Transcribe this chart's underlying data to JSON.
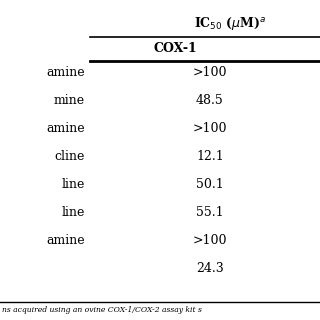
{
  "header_ic50": "IC$_{50}$ ($\\mu$M)$^a$",
  "subheader_cox1": "COX-1",
  "rows": [
    {
      "label": "amine",
      "cox1": ">100"
    },
    {
      "label": "mine",
      "cox1": "48.5"
    },
    {
      "label": "amine",
      "cox1": ">100"
    },
    {
      "label": "cline",
      "cox1": "12.1"
    },
    {
      "label": "line",
      "cox1": "50.1"
    },
    {
      "label": "line",
      "cox1": "55.1"
    },
    {
      "label": "amine",
      "cox1": ">100"
    },
    {
      "label": "",
      "cox1": "24.3"
    }
  ],
  "footer": "ns acquired using an ovine COX-1/COX-2 assay kit s",
  "bg_color": "#ffffff",
  "text_color": "#000000",
  "line_color": "#000000"
}
